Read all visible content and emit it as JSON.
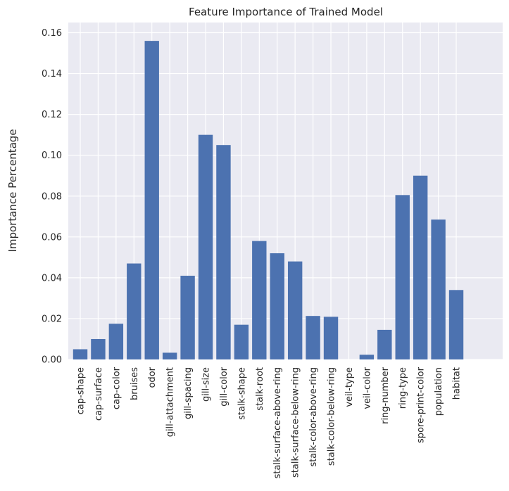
{
  "chart_data": {
    "type": "bar",
    "title": "Feature Importance of Trained Model",
    "xlabel": "",
    "ylabel": "Importance Percentage",
    "ylim": [
      0,
      0.165
    ],
    "yticks": [
      "0.00",
      "0.02",
      "0.04",
      "0.06",
      "0.08",
      "0.10",
      "0.12",
      "0.14",
      "0.16"
    ],
    "grid": true,
    "bar_color": "#4c72b0",
    "background_color": "#eaeaf2",
    "categories": [
      "cap-shape",
      "cap-surface",
      "cap-color",
      "bruises",
      "odor",
      "gill-attachment",
      "gill-spacing",
      "gill-size",
      "gill-color",
      "stalk-shape",
      "stalk-root",
      "stalk-surface-above-ring",
      "stalk-surface-below-ring",
      "stalk-color-above-ring",
      "stalk-color-below-ring",
      "veil-type",
      "veil-color",
      "ring-number",
      "ring-type",
      "spore-print-color",
      "population",
      "habitat"
    ],
    "values": [
      0.005,
      0.01,
      0.0175,
      0.047,
      0.156,
      0.0033,
      0.041,
      0.11,
      0.105,
      0.017,
      0.058,
      0.052,
      0.048,
      0.0213,
      0.0209,
      0.0,
      0.0023,
      0.0145,
      0.0805,
      0.09,
      0.0685,
      0.034
    ]
  }
}
